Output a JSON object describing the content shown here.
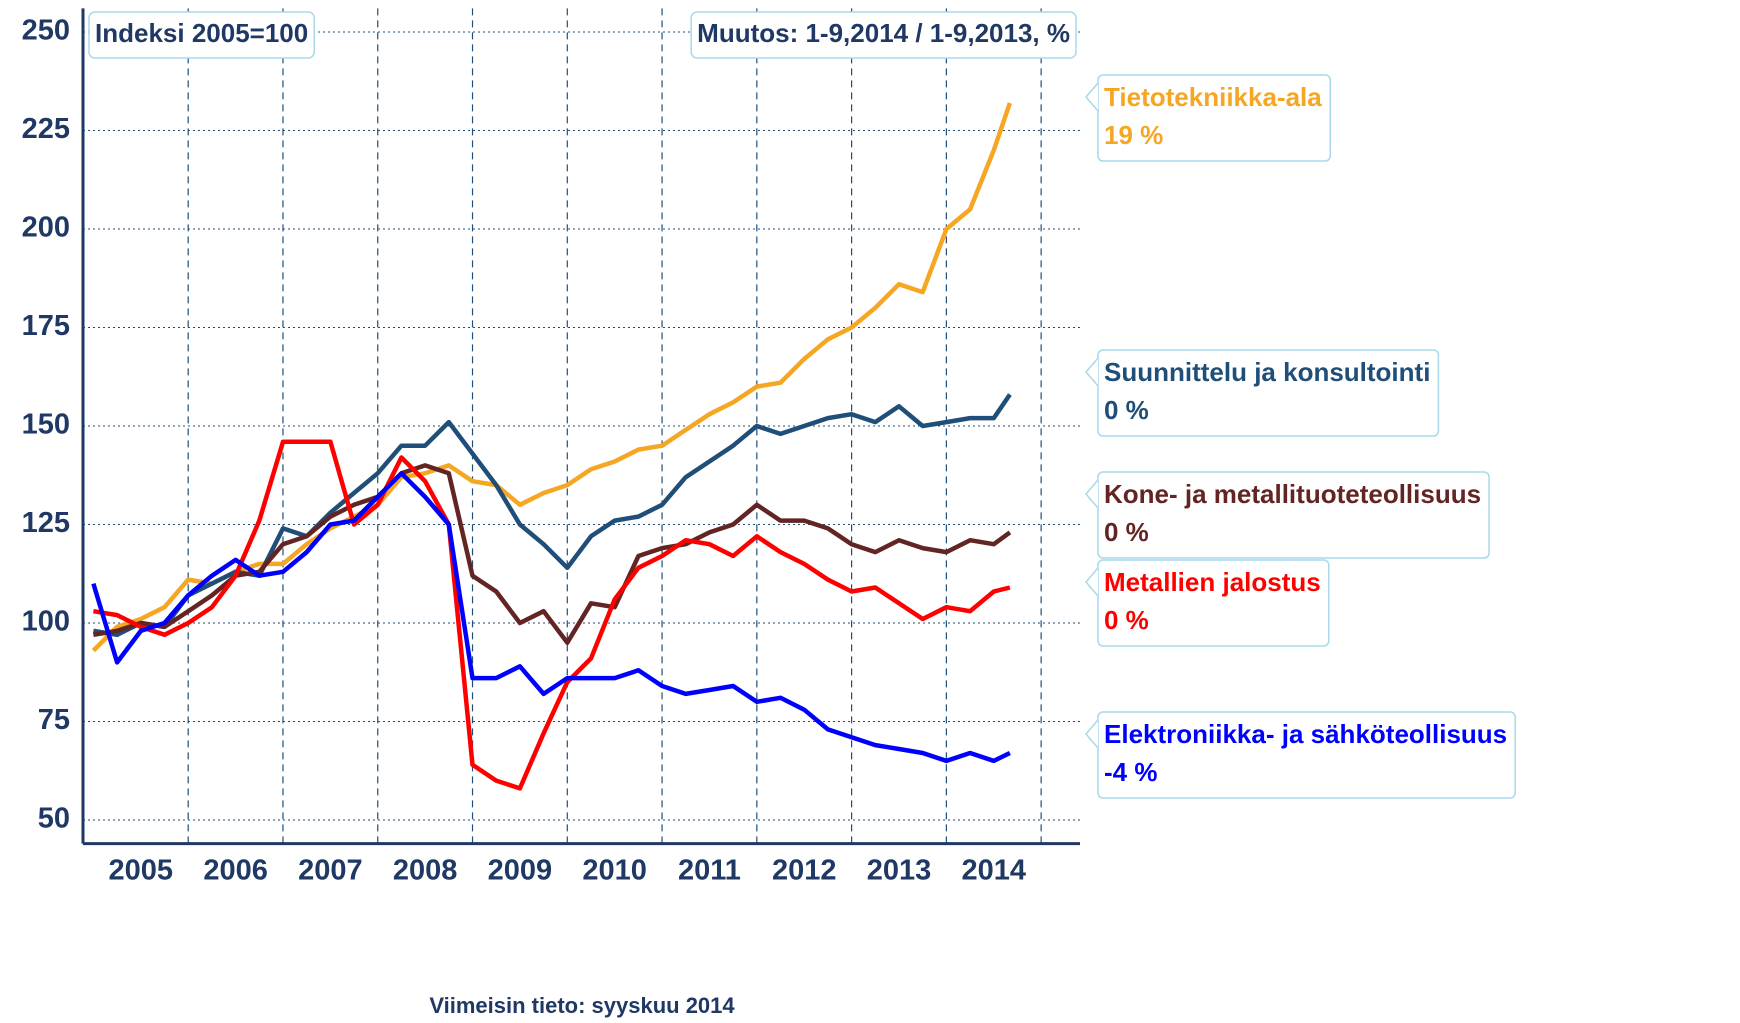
{
  "chart_data": {
    "type": "line",
    "annotations": [
      "Indeksi 2005=100",
      "Muutos: 1-9,2014 / 1-9,2013, %"
    ],
    "footnote": "Viimeisin tieto: syyskuu 2014",
    "x": [
      2005,
      2005.25,
      2005.5,
      2005.75,
      2006,
      2006.25,
      2006.5,
      2006.75,
      2007,
      2007.25,
      2007.5,
      2007.75,
      2008,
      2008.25,
      2008.5,
      2008.75,
      2009,
      2009.25,
      2009.5,
      2009.75,
      2010,
      2010.25,
      2010.5,
      2010.75,
      2011,
      2011.25,
      2011.5,
      2011.75,
      2012,
      2012.25,
      2012.5,
      2012.75,
      2013,
      2013.25,
      2013.5,
      2013.75,
      2014,
      2014.25,
      2014.5,
      2014.67
    ],
    "xlim": [
      2004.89,
      2015.41
    ],
    "xticks": [
      {
        "value": 2005.5,
        "label": "2005"
      },
      {
        "value": 2006.5,
        "label": "2006"
      },
      {
        "value": 2007.5,
        "label": "2007"
      },
      {
        "value": 2008.5,
        "label": "2008"
      },
      {
        "value": 2009.5,
        "label": "2009"
      },
      {
        "value": 2010.5,
        "label": "2010"
      },
      {
        "value": 2011.5,
        "label": "2011"
      },
      {
        "value": 2012.5,
        "label": "2012"
      },
      {
        "value": 2013.5,
        "label": "2013"
      },
      {
        "value": 2014.5,
        "label": "2014"
      }
    ],
    "ylim": [
      44,
      256
    ],
    "yticks": [
      50,
      75,
      100,
      125,
      150,
      175,
      200,
      225,
      250
    ],
    "grid": true,
    "series": [
      {
        "name": "Tietotekniikka-ala",
        "change": "19 %",
        "color": "#f5a623",
        "values": [
          93,
          99,
          101,
          104,
          111,
          110,
          113,
          115,
          115,
          120,
          124,
          127,
          130,
          137,
          138,
          140,
          136,
          135,
          130,
          133,
          135,
          139,
          141,
          144,
          145,
          149,
          153,
          156,
          160,
          161,
          167,
          172,
          175,
          180,
          186,
          184,
          200,
          205,
          220,
          232
        ]
      },
      {
        "name": "Suunnittelu ja konsultointi",
        "change": "0 %",
        "color": "#1f4e79",
        "values": [
          98,
          97,
          100,
          99,
          107,
          110,
          113,
          112,
          124,
          122,
          128,
          133,
          138,
          145,
          145,
          151,
          143,
          135,
          125,
          120,
          114,
          122,
          126,
          127,
          130,
          137,
          141,
          145,
          150,
          148,
          150,
          152,
          153,
          151,
          155,
          150,
          151,
          152,
          152,
          158
        ]
      },
      {
        "name": "Kone- ja metallituoteteollisuus",
        "change": "0 %",
        "color": "#632523",
        "values": [
          97,
          98,
          100,
          99,
          103,
          107,
          112,
          113,
          120,
          122,
          127,
          130,
          132,
          138,
          140,
          138,
          112,
          108,
          100,
          103,
          95,
          105,
          104,
          117,
          119,
          120,
          123,
          125,
          130,
          126,
          126,
          124,
          120,
          118,
          121,
          119,
          118,
          121,
          120,
          123
        ]
      },
      {
        "name": "Metallien jalostus",
        "change": "0 %",
        "color": "#ff0000",
        "values": [
          103,
          102,
          99,
          97,
          100,
          104,
          112,
          126,
          146,
          146,
          146,
          125,
          130,
          142,
          136,
          125,
          64,
          60,
          58,
          72,
          85,
          91,
          106,
          114,
          117,
          121,
          120,
          117,
          122,
          118,
          115,
          111,
          108,
          109,
          105,
          101,
          104,
          103,
          108,
          109
        ]
      },
      {
        "name": "Elektroniikka- ja sähköteollisuus",
        "change": "-4 %",
        "color": "#0000ff",
        "values": [
          110,
          90,
          98,
          100,
          107,
          112,
          116,
          112,
          113,
          118,
          125,
          126,
          132,
          138,
          132,
          125,
          86,
          86,
          89,
          82,
          86,
          86,
          86,
          88,
          84,
          82,
          83,
          84,
          80,
          81,
          78,
          73,
          71,
          69,
          68,
          67,
          65,
          67,
          65,
          67
        ]
      }
    ]
  }
}
